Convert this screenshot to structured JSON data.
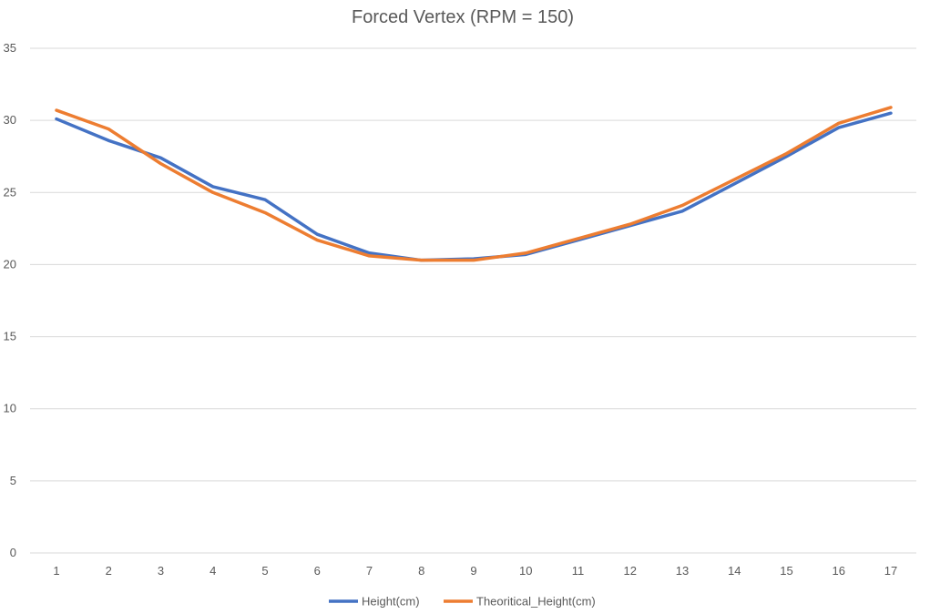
{
  "chart_data": {
    "type": "line",
    "title": "Forced Vertex (RPM = 150)",
    "xlabel": "",
    "ylabel": "",
    "categories": [
      "1",
      "2",
      "3",
      "4",
      "5",
      "6",
      "7",
      "8",
      "9",
      "10",
      "11",
      "12",
      "13",
      "14",
      "15",
      "16",
      "17"
    ],
    "ylim": [
      0,
      35
    ],
    "yticks": [
      0,
      5,
      10,
      15,
      20,
      25,
      30,
      35
    ],
    "grid": "horizontal",
    "legend_position": "bottom",
    "series": [
      {
        "name": "Height(cm)",
        "color": "#4472C4",
        "values": [
          30.1,
          28.6,
          27.4,
          25.4,
          24.5,
          22.1,
          20.8,
          20.3,
          20.4,
          20.7,
          21.7,
          22.7,
          23.7,
          25.6,
          27.5,
          29.5,
          30.5
        ]
      },
      {
        "name": "Theoritical_Height(cm)",
        "color": "#ED7D31",
        "values": [
          30.7,
          29.4,
          27.0,
          25.0,
          23.6,
          21.7,
          20.6,
          20.3,
          20.3,
          20.8,
          21.8,
          22.8,
          24.1,
          25.9,
          27.7,
          29.8,
          30.9
        ]
      }
    ]
  }
}
